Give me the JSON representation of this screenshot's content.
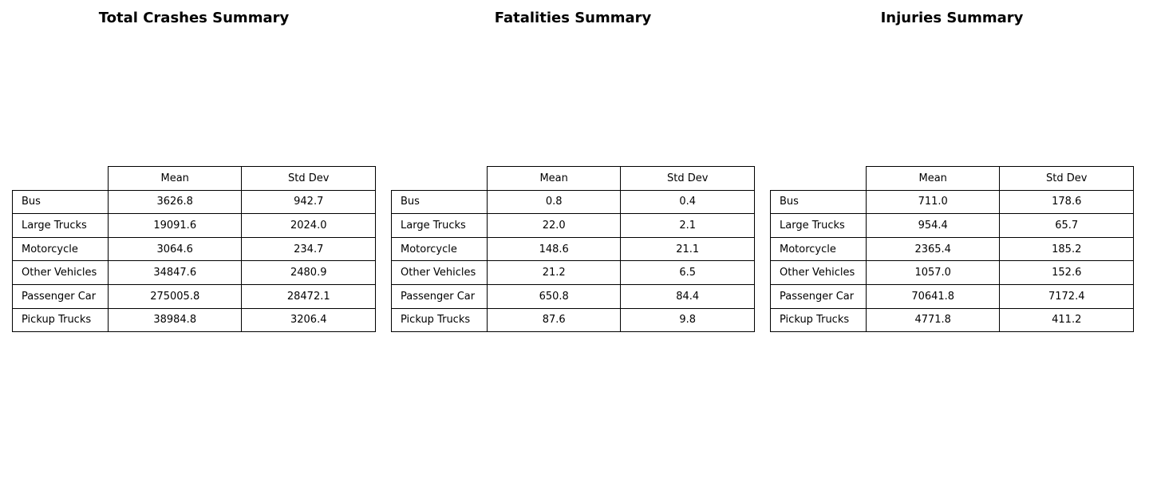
{
  "chart_data": [
    {
      "type": "table",
      "title": "Total Crashes Summary",
      "columns": [
        "Mean",
        "Std Dev"
      ],
      "rows": [
        {
          "label": "Bus",
          "values": [
            "3626.8",
            "942.7"
          ]
        },
        {
          "label": "Large Trucks",
          "values": [
            "19091.6",
            "2024.0"
          ]
        },
        {
          "label": "Motorcycle",
          "values": [
            "3064.6",
            "234.7"
          ]
        },
        {
          "label": "Other Vehicles",
          "values": [
            "34847.6",
            "2480.9"
          ]
        },
        {
          "label": "Passenger Car",
          "values": [
            "275005.8",
            "28472.1"
          ]
        },
        {
          "label": "Pickup Trucks",
          "values": [
            "38984.8",
            "3206.4"
          ]
        }
      ]
    },
    {
      "type": "table",
      "title": "Fatalities Summary",
      "columns": [
        "Mean",
        "Std Dev"
      ],
      "rows": [
        {
          "label": "Bus",
          "values": [
            "0.8",
            "0.4"
          ]
        },
        {
          "label": "Large Trucks",
          "values": [
            "22.0",
            "2.1"
          ]
        },
        {
          "label": "Motorcycle",
          "values": [
            "148.6",
            "21.1"
          ]
        },
        {
          "label": "Other Vehicles",
          "values": [
            "21.2",
            "6.5"
          ]
        },
        {
          "label": "Passenger Car",
          "values": [
            "650.8",
            "84.4"
          ]
        },
        {
          "label": "Pickup Trucks",
          "values": [
            "87.6",
            "9.8"
          ]
        }
      ]
    },
    {
      "type": "table",
      "title": "Injuries Summary",
      "columns": [
        "Mean",
        "Std Dev"
      ],
      "rows": [
        {
          "label": "Bus",
          "values": [
            "711.0",
            "178.6"
          ]
        },
        {
          "label": "Large Trucks",
          "values": [
            "954.4",
            "65.7"
          ]
        },
        {
          "label": "Motorcycle",
          "values": [
            "2365.4",
            "185.2"
          ]
        },
        {
          "label": "Other Vehicles",
          "values": [
            "1057.0",
            "152.6"
          ]
        },
        {
          "label": "Passenger Car",
          "values": [
            "70641.8",
            "7172.4"
          ]
        },
        {
          "label": "Pickup Trucks",
          "values": [
            "4771.8",
            "411.2"
          ]
        }
      ]
    }
  ]
}
